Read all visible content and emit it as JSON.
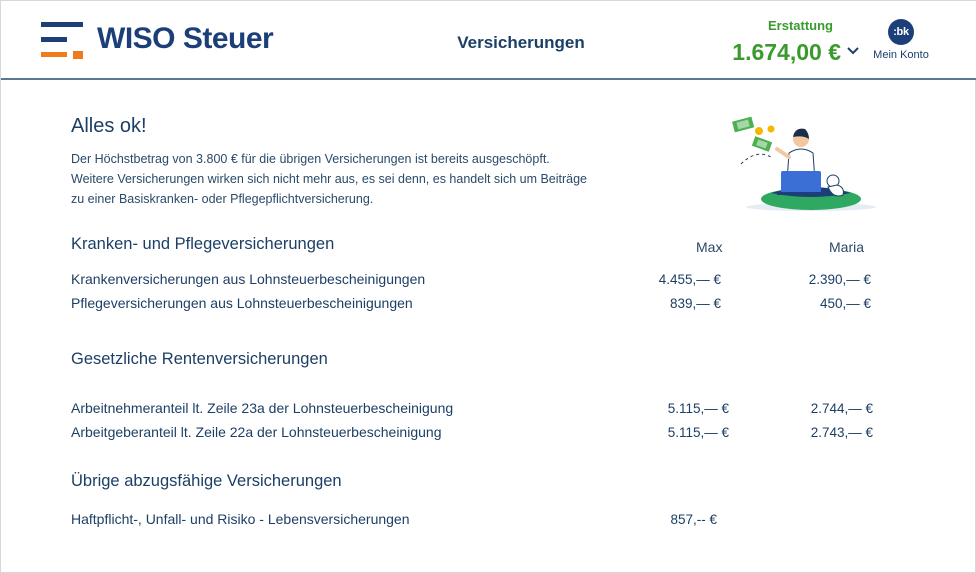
{
  "header": {
    "logo_text": "WISO Steuer",
    "page_title": "Versicherungen",
    "refund_label": "Erstattung",
    "refund_amount": "1.674,00 €",
    "avatar_text": ":bk",
    "account_label": "Mein Konto"
  },
  "status": {
    "title": "Alles ok!",
    "text": "Der Höchstbetrag von 3.800 € für die übrigen Versicherungen ist bereits ausgeschöpft. Weitere Versicherungen wirken sich nicht mehr aus, es sei denn, es handelt sich um Beiträge zu einer Basiskranken- oder Pflegepflichtversicherung."
  },
  "columns": {
    "person1": "Max",
    "person2": "Maria"
  },
  "sections": {
    "health": {
      "title": "Kranken- und Pflegeversicherungen",
      "rows": [
        {
          "label": "Krankenversicherungen aus Lohnsteuerbescheinigungen",
          "max": "4.455,— €",
          "maria": "2.390,— €"
        },
        {
          "label": "Pflegeversicherungen aus Lohnsteuerbescheinigungen",
          "max": "839,— €",
          "maria": "450,— €"
        }
      ]
    },
    "pension": {
      "title": "Gesetzliche Rentenversicherungen",
      "rows": [
        {
          "label": "Arbeitnehmeranteil lt. Zeile 23a der Lohnsteuerbescheinigung",
          "max": "5.115,— €",
          "maria": "2.744,— €"
        },
        {
          "label": "Arbeitgeberanteil lt. Zeile 22a der Lohnsteuerbescheinigung",
          "max": "5.115,— €",
          "maria": "2.743,— €"
        }
      ]
    },
    "other": {
      "title": "Übrige abzugsfähige Versicherungen",
      "rows": [
        {
          "label": "Haftpflicht-, Unfall- und Risiko - Lebensversicherungen",
          "max": "857,-- €"
        }
      ]
    }
  },
  "colors": {
    "accent": "#1c3f7a",
    "refund": "#3a9a2e",
    "logo_orange": "#f07b1c"
  },
  "icons": {
    "illustration": "person-with-laptop-illustration",
    "chevron": "chevron-down-icon"
  }
}
